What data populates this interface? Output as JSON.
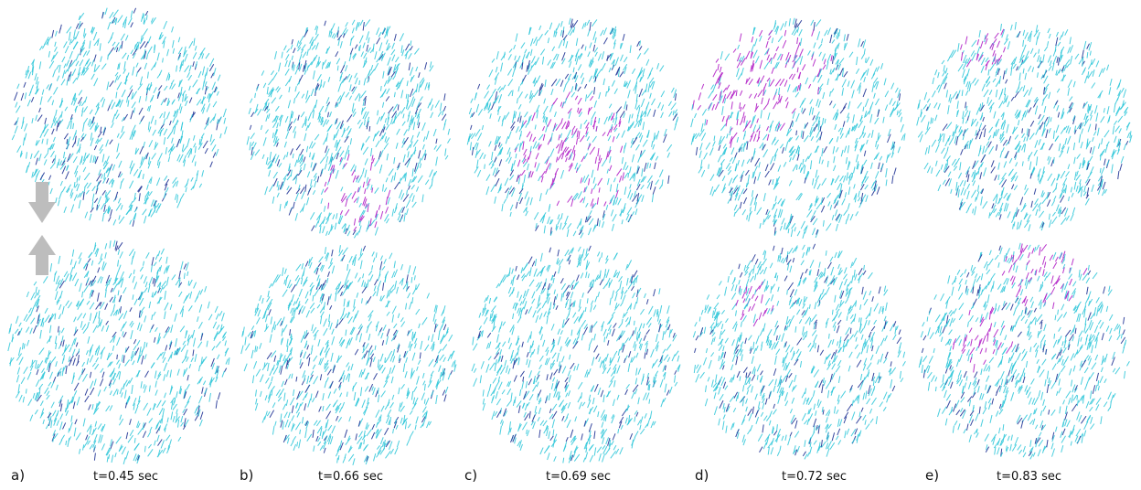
{
  "panels": [
    {
      "letter": "a)",
      "time": "t=0.45 sec",
      "top_hotspots": [],
      "bottom_hotspots": []
    },
    {
      "letter": "b)",
      "time": "t=0.66 sec",
      "top_hotspots": [
        {
          "u": 0.55,
          "v": 0.8,
          "r": 0.18
        }
      ],
      "bottom_hotspots": []
    },
    {
      "letter": "c)",
      "time": "t=0.69 sec",
      "top_hotspots": [
        {
          "u": 0.5,
          "v": 0.62,
          "r": 0.28
        }
      ],
      "bottom_hotspots": []
    },
    {
      "letter": "d)",
      "time": "t=0.72 sec",
      "top_hotspots": [
        {
          "u": 0.25,
          "v": 0.3,
          "r": 0.28
        },
        {
          "u": 0.5,
          "v": 0.2,
          "r": 0.16
        }
      ],
      "bottom_hotspots": [
        {
          "u": 0.3,
          "v": 0.3,
          "r": 0.12
        }
      ]
    },
    {
      "letter": "e)",
      "time": "t=0.83 sec",
      "top_hotspots": [
        {
          "u": 0.3,
          "v": 0.1,
          "r": 0.12
        }
      ],
      "bottom_hotspots": [
        {
          "u": 0.6,
          "v": 0.1,
          "r": 0.2
        },
        {
          "u": 0.3,
          "v": 0.45,
          "r": 0.15
        }
      ]
    }
  ],
  "colors": {
    "stroke_main": "#2ac6d8",
    "stroke_dark": "#2b3d9a",
    "stroke_hot": "#b42ac8",
    "arrow": "#bdbdbd"
  },
  "arrows": {
    "top_direction": "down",
    "bottom_direction": "up"
  }
}
